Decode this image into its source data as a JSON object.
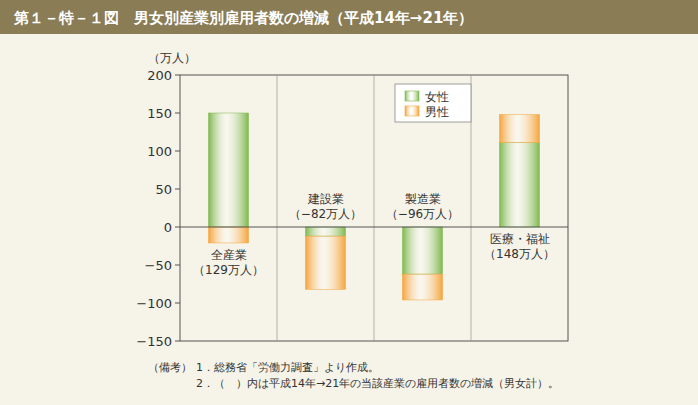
{
  "chart_data": {
    "type": "bar",
    "title": "第１－特－１図　男女別産業別雇用者数の増減（平成14年→21年）",
    "y_label": "（万人）",
    "categories": [
      "全産業",
      "建設業",
      "製造業",
      "医療・福祉"
    ],
    "series": [
      {
        "name": "女性",
        "color": "#7fb84e",
        "values": [
          150,
          -12,
          -62,
          111
        ]
      },
      {
        "name": "男性",
        "color": "#f5a43a",
        "values": [
          -21,
          -70,
          -34,
          37
        ]
      }
    ],
    "totals": [
      129,
      -82,
      -96,
      148
    ],
    "total_labels": [
      "（129万人）",
      "（−82万人）",
      "（−96万人）",
      "（148万人）"
    ],
    "ylim": [
      -150,
      200
    ],
    "yticks": [
      -150,
      -100,
      -50,
      0,
      50,
      100,
      150,
      200
    ],
    "stacked": true,
    "grid": false,
    "legend": "top-right",
    "notes_label": "（備考）",
    "notes": [
      "1．総務省「労働力調査」より作成。",
      "2．（　）内は平成14年→21年の当該産業の雇用者数の増減（男女計）。"
    ]
  }
}
